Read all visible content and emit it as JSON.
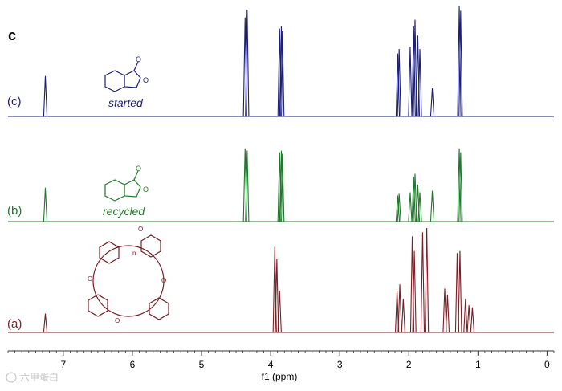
{
  "panel_label": "c",
  "watermark": "六甲蛋白",
  "colors": {
    "c": "#1a1f7a",
    "b": "#1f7a2a",
    "a": "#7a1f26",
    "axis": "#333333"
  },
  "spectra": [
    {
      "id": "c",
      "label": "(c)",
      "caption": "started",
      "colorKey": "c",
      "peaks": [
        {
          "ppm": 7.26,
          "h": 0.36
        },
        {
          "ppm": 4.37,
          "h": 0.88
        },
        {
          "ppm": 4.34,
          "h": 0.95
        },
        {
          "ppm": 3.87,
          "h": 0.78
        },
        {
          "ppm": 3.845,
          "h": 0.8
        },
        {
          "ppm": 3.83,
          "h": 0.76
        },
        {
          "ppm": 2.16,
          "h": 0.56
        },
        {
          "ppm": 2.14,
          "h": 0.6
        },
        {
          "ppm": 1.98,
          "h": 0.62
        },
        {
          "ppm": 1.93,
          "h": 0.8
        },
        {
          "ppm": 1.91,
          "h": 0.86
        },
        {
          "ppm": 1.87,
          "h": 0.72
        },
        {
          "ppm": 1.84,
          "h": 0.6
        },
        {
          "ppm": 1.66,
          "h": 0.25
        },
        {
          "ppm": 1.27,
          "h": 0.98
        },
        {
          "ppm": 1.25,
          "h": 0.94
        }
      ]
    },
    {
      "id": "b",
      "label": "(b)",
      "caption": "recycled",
      "colorKey": "b",
      "peaks": [
        {
          "ppm": 7.26,
          "h": 0.44
        },
        {
          "ppm": 4.37,
          "h": 0.95
        },
        {
          "ppm": 4.34,
          "h": 0.92
        },
        {
          "ppm": 3.87,
          "h": 0.9
        },
        {
          "ppm": 3.845,
          "h": 0.92
        },
        {
          "ppm": 3.83,
          "h": 0.88
        },
        {
          "ppm": 2.16,
          "h": 0.34
        },
        {
          "ppm": 2.14,
          "h": 0.36
        },
        {
          "ppm": 1.98,
          "h": 0.38
        },
        {
          "ppm": 1.93,
          "h": 0.58
        },
        {
          "ppm": 1.91,
          "h": 0.62
        },
        {
          "ppm": 1.87,
          "h": 0.48
        },
        {
          "ppm": 1.84,
          "h": 0.38
        },
        {
          "ppm": 1.66,
          "h": 0.4
        },
        {
          "ppm": 1.27,
          "h": 0.95
        },
        {
          "ppm": 1.25,
          "h": 0.9
        }
      ]
    },
    {
      "id": "a",
      "label": "(a)",
      "caption": "",
      "colorKey": "a",
      "peaks": [
        {
          "ppm": 7.26,
          "h": 0.18
        },
        {
          "ppm": 3.94,
          "h": 0.82
        },
        {
          "ppm": 3.91,
          "h": 0.7
        },
        {
          "ppm": 3.87,
          "h": 0.4
        },
        {
          "ppm": 2.17,
          "h": 0.4
        },
        {
          "ppm": 2.13,
          "h": 0.46
        },
        {
          "ppm": 2.08,
          "h": 0.32
        },
        {
          "ppm": 1.95,
          "h": 0.92
        },
        {
          "ppm": 1.92,
          "h": 0.78
        },
        {
          "ppm": 1.8,
          "h": 0.96
        },
        {
          "ppm": 1.74,
          "h": 1.0
        },
        {
          "ppm": 1.48,
          "h": 0.42
        },
        {
          "ppm": 1.44,
          "h": 0.36
        },
        {
          "ppm": 1.3,
          "h": 0.76
        },
        {
          "ppm": 1.26,
          "h": 0.78
        },
        {
          "ppm": 1.18,
          "h": 0.32
        },
        {
          "ppm": 1.13,
          "h": 0.26
        },
        {
          "ppm": 1.08,
          "h": 0.24
        }
      ]
    }
  ],
  "chart_data": {
    "type": "line",
    "title": "",
    "xlabel": "f1 (ppm)",
    "ylabel": "",
    "xlim": [
      7.8,
      -0.1
    ],
    "xaxis_reversed": true,
    "xticks": [
      7,
      6,
      5,
      4,
      3,
      2,
      1,
      0
    ],
    "grid": false,
    "series": [
      {
        "name": "(c)",
        "note": "started"
      },
      {
        "name": "(b)",
        "note": "recycled"
      },
      {
        "name": "(a)",
        "note": ""
      }
    ]
  }
}
